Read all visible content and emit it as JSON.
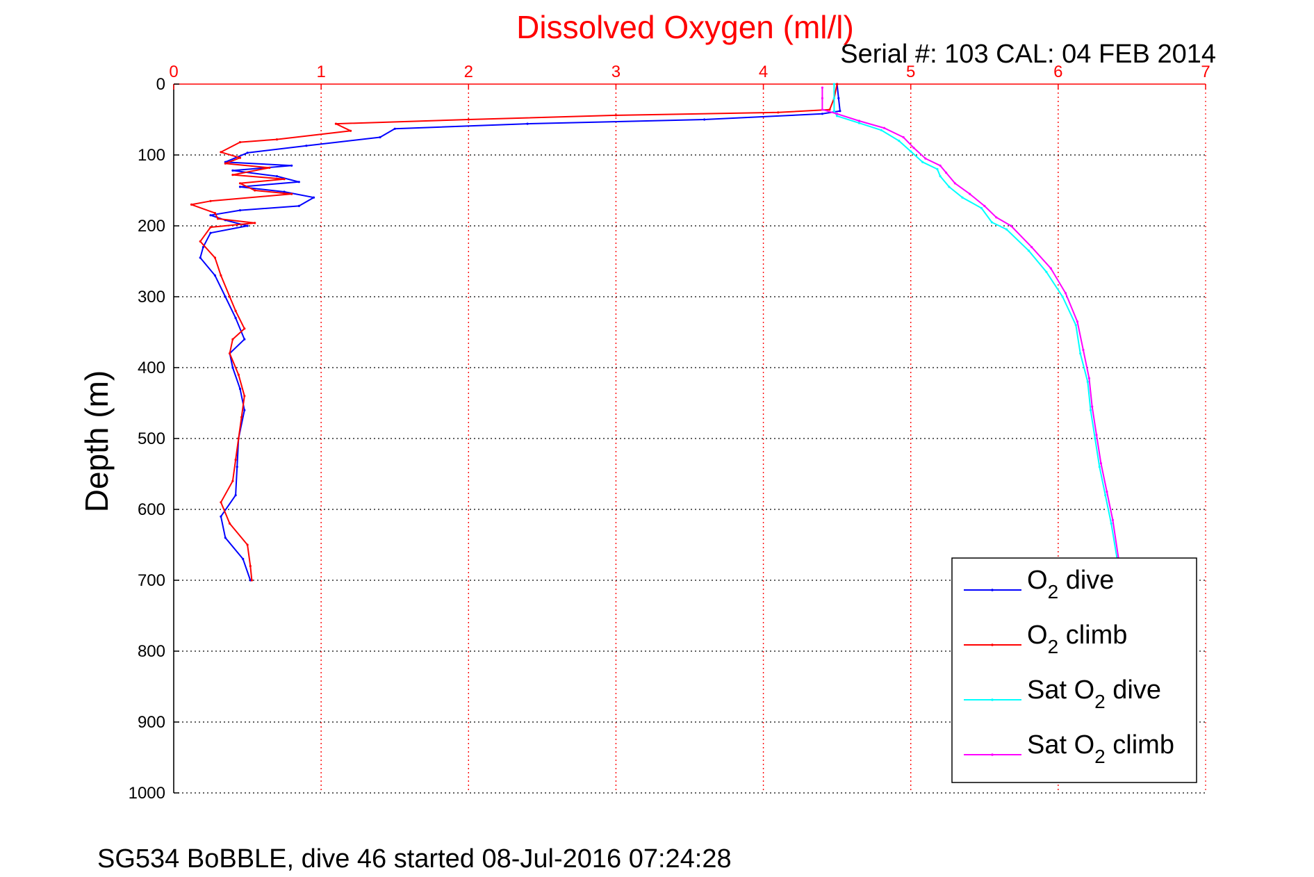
{
  "chart_data": {
    "type": "line",
    "title": "Dissolved Oxygen (ml/l)",
    "subtitle": "Serial #: 103  CAL: 04 FEB 2014",
    "footer": "SG534 BoBBLE, dive 46 started 08-Jul-2016 07:24:28",
    "xlabel": "",
    "ylabel": "Depth (m)",
    "xlim": [
      0,
      7
    ],
    "ylim": [
      0,
      1000
    ],
    "y_reversed": true,
    "x_axis_position": "top",
    "x_ticks": [
      "0",
      "1",
      "2",
      "3",
      "4",
      "5",
      "6",
      "7"
    ],
    "y_ticks": [
      "0",
      "100",
      "200",
      "300",
      "400",
      "500",
      "600",
      "700",
      "800",
      "900",
      "1000"
    ],
    "grid": true,
    "legend_position": "lower-right",
    "colors": {
      "title": "#ff0000",
      "x_axis": "#ff0000",
      "grid": "#ff0000",
      "text": "#000000"
    },
    "series": [
      {
        "name": "O2 dive",
        "legend_main": "O",
        "legend_sub": "2",
        "legend_rest": " dive",
        "color": "#0000ff",
        "points": [
          [
            4.5,
            0
          ],
          [
            4.51,
            20
          ],
          [
            4.52,
            38
          ],
          [
            4.4,
            42
          ],
          [
            3.6,
            50
          ],
          [
            2.4,
            56
          ],
          [
            1.5,
            63
          ],
          [
            1.4,
            75
          ],
          [
            0.9,
            87
          ],
          [
            0.5,
            97
          ],
          [
            0.35,
            110
          ],
          [
            0.8,
            115
          ],
          [
            0.4,
            122
          ],
          [
            0.7,
            130
          ],
          [
            0.85,
            138
          ],
          [
            0.45,
            145
          ],
          [
            0.75,
            152
          ],
          [
            0.95,
            160
          ],
          [
            0.85,
            172
          ],
          [
            0.45,
            178
          ],
          [
            0.25,
            185
          ],
          [
            0.35,
            192
          ],
          [
            0.5,
            200
          ],
          [
            0.25,
            210
          ],
          [
            0.2,
            230
          ],
          [
            0.18,
            245
          ],
          [
            0.28,
            270
          ],
          [
            0.35,
            300
          ],
          [
            0.42,
            330
          ],
          [
            0.48,
            360
          ],
          [
            0.38,
            380
          ],
          [
            0.4,
            400
          ],
          [
            0.45,
            430
          ],
          [
            0.48,
            460
          ],
          [
            0.44,
            500
          ],
          [
            0.43,
            540
          ],
          [
            0.42,
            580
          ],
          [
            0.32,
            610
          ],
          [
            0.35,
            640
          ],
          [
            0.47,
            670
          ],
          [
            0.52,
            700
          ]
        ]
      },
      {
        "name": "O2 climb",
        "legend_main": "O",
        "legend_sub": "2",
        "legend_rest": " climb",
        "color": "#ff0000",
        "points": [
          [
            4.5,
            0
          ],
          [
            4.48,
            20
          ],
          [
            4.45,
            36
          ],
          [
            4.1,
            40
          ],
          [
            3.0,
            44
          ],
          [
            2.0,
            50
          ],
          [
            1.1,
            56
          ],
          [
            1.2,
            66
          ],
          [
            0.7,
            78
          ],
          [
            0.45,
            82
          ],
          [
            0.32,
            96
          ],
          [
            0.45,
            104
          ],
          [
            0.35,
            112
          ],
          [
            0.65,
            118
          ],
          [
            0.4,
            128
          ],
          [
            0.75,
            134
          ],
          [
            0.45,
            140
          ],
          [
            0.55,
            150
          ],
          [
            0.8,
            155
          ],
          [
            0.25,
            165
          ],
          [
            0.12,
            170
          ],
          [
            0.28,
            182
          ],
          [
            0.3,
            190
          ],
          [
            0.55,
            196
          ],
          [
            0.25,
            202
          ],
          [
            0.18,
            222
          ],
          [
            0.28,
            245
          ],
          [
            0.32,
            270
          ],
          [
            0.38,
            300
          ],
          [
            0.42,
            320
          ],
          [
            0.48,
            345
          ],
          [
            0.4,
            360
          ],
          [
            0.38,
            380
          ],
          [
            0.44,
            410
          ],
          [
            0.48,
            440
          ],
          [
            0.46,
            470
          ],
          [
            0.44,
            500
          ],
          [
            0.42,
            530
          ],
          [
            0.4,
            560
          ],
          [
            0.32,
            590
          ],
          [
            0.38,
            620
          ],
          [
            0.5,
            650
          ],
          [
            0.52,
            680
          ],
          [
            0.53,
            700
          ]
        ]
      },
      {
        "name": "Sat O2 dive",
        "legend_main": "Sat O",
        "legend_sub": "2",
        "legend_rest": " dive",
        "color": "#00ffff",
        "points": [
          [
            4.48,
            0
          ],
          [
            4.48,
            20
          ],
          [
            4.48,
            38
          ],
          [
            4.5,
            45
          ],
          [
            4.65,
            55
          ],
          [
            4.8,
            65
          ],
          [
            4.92,
            80
          ],
          [
            5.0,
            95
          ],
          [
            5.08,
            110
          ],
          [
            5.18,
            120
          ],
          [
            5.2,
            130
          ],
          [
            5.26,
            145
          ],
          [
            5.35,
            160
          ],
          [
            5.48,
            175
          ],
          [
            5.55,
            195
          ],
          [
            5.65,
            205
          ],
          [
            5.8,
            235
          ],
          [
            5.92,
            265
          ],
          [
            6.03,
            300
          ],
          [
            6.12,
            340
          ],
          [
            6.15,
            380
          ],
          [
            6.2,
            420
          ],
          [
            6.22,
            460
          ],
          [
            6.25,
            500
          ],
          [
            6.28,
            540
          ],
          [
            6.32,
            580
          ],
          [
            6.36,
            620
          ],
          [
            6.4,
            670
          ]
        ]
      },
      {
        "name": "Sat O2 climb",
        "legend_main": "Sat O",
        "legend_sub": "2",
        "legend_rest": " climb",
        "color": "#ff00ff",
        "points": [
          [
            4.4,
            5
          ],
          [
            4.4,
            20
          ],
          [
            4.4,
            36
          ],
          [
            4.5,
            42
          ],
          [
            4.65,
            52
          ],
          [
            4.82,
            62
          ],
          [
            4.95,
            75
          ],
          [
            5.02,
            90
          ],
          [
            5.1,
            105
          ],
          [
            5.2,
            115
          ],
          [
            5.24,
            125
          ],
          [
            5.3,
            140
          ],
          [
            5.4,
            155
          ],
          [
            5.5,
            172
          ],
          [
            5.58,
            188
          ],
          [
            5.68,
            200
          ],
          [
            5.82,
            230
          ],
          [
            5.95,
            260
          ],
          [
            6.05,
            295
          ],
          [
            6.13,
            335
          ],
          [
            6.17,
            375
          ],
          [
            6.21,
            415
          ],
          [
            6.23,
            455
          ],
          [
            6.26,
            495
          ],
          [
            6.29,
            535
          ],
          [
            6.33,
            575
          ],
          [
            6.37,
            615
          ],
          [
            6.41,
            670
          ]
        ]
      }
    ]
  }
}
